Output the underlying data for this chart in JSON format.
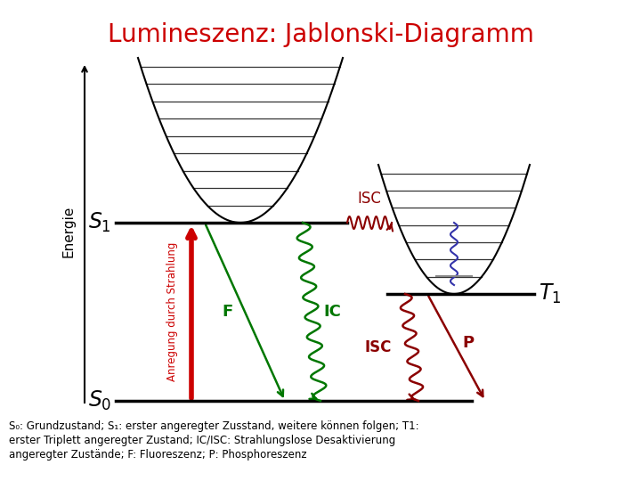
{
  "title": "Lumineszenz: Jablonski-Diagramm",
  "title_color": "#cc0000",
  "title_fontsize": 20,
  "bg_color": "#ffffff",
  "caption_line1": "S₀: Grundzustand; S₁: erster angeregter Zusstand, weitere können folgen; T1:",
  "caption_line2": "erster Triplett angeregter Zustand; IC/ISC: Strahlungslose Desaktivierung",
  "caption_line3": "angeregter Zustände; F: Fluoreszenz; P: Phosphoreszenz",
  "energy_label": "Energie",
  "anregung_label": "Anregung durch Strahlung",
  "color_red": "#cc0000",
  "color_green": "#007700",
  "color_darkred": "#8b0000",
  "color_black": "#000000",
  "color_blue": "#3333aa",
  "color_gray": "#888888"
}
